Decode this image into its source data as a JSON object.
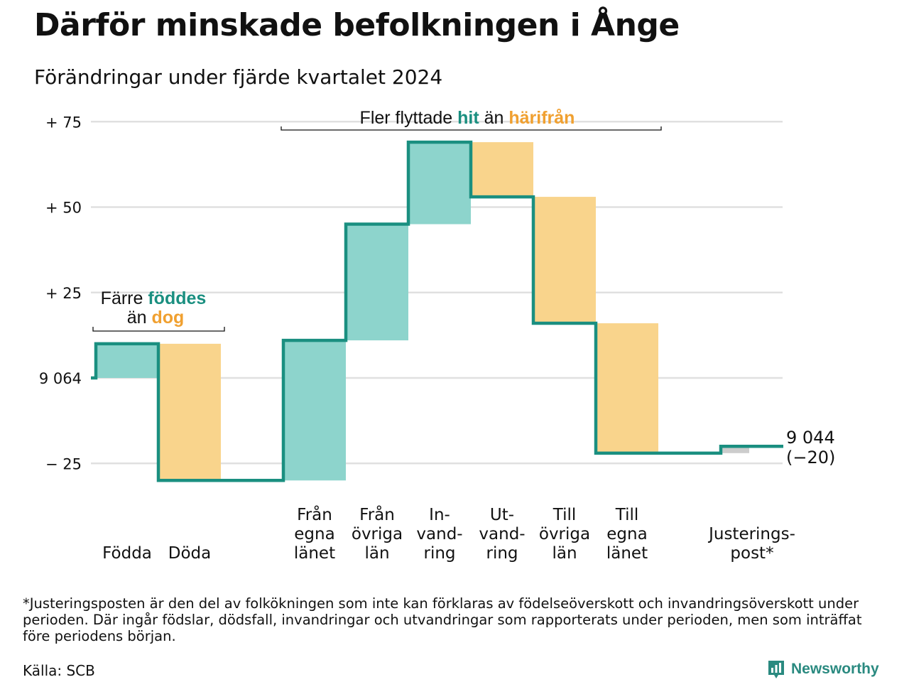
{
  "header": {
    "title": "Därför minskade befolkningen i Ånge",
    "subtitle": "Förändringar under fjärde kvartalet 2024"
  },
  "chart_data": {
    "type": "bar",
    "subtype": "waterfall",
    "start_value": 9064,
    "end_label": "9 044",
    "end_change_label": "(−20)",
    "ylim": [
      -30,
      78
    ],
    "yticks": [
      {
        "value": 75,
        "label": "+ 75"
      },
      {
        "value": 50,
        "label": "+ 50"
      },
      {
        "value": 25,
        "label": "+ 25"
      },
      {
        "value": 0,
        "label": "9 064"
      },
      {
        "value": -25,
        "label": "− 25"
      }
    ],
    "categories": [
      {
        "lines": [
          "Födda"
        ],
        "value": 10,
        "kind": "in"
      },
      {
        "lines": [
          "Döda"
        ],
        "value": -40,
        "kind": "out"
      },
      {
        "lines": [
          ""
        ],
        "value": 0,
        "kind": "gap"
      },
      {
        "lines": [
          "Från",
          "egna",
          "länet"
        ],
        "value": 41,
        "kind": "in"
      },
      {
        "lines": [
          "Från",
          "övriga",
          "län"
        ],
        "value": 34,
        "kind": "in"
      },
      {
        "lines": [
          "In-",
          "vand-",
          "ring"
        ],
        "value": 24,
        "kind": "in"
      },
      {
        "lines": [
          "Ut-",
          "vand-",
          "ring"
        ],
        "value": -16,
        "kind": "out"
      },
      {
        "lines": [
          "Till",
          "övriga",
          "län"
        ],
        "value": -37,
        "kind": "out"
      },
      {
        "lines": [
          "Till",
          "egna",
          "länet"
        ],
        "value": -38,
        "kind": "out"
      },
      {
        "lines": [
          ""
        ],
        "value": 0,
        "kind": "gap"
      },
      {
        "lines": [
          "Justerings-",
          "post*"
        ],
        "value": 2,
        "kind": "adjust"
      }
    ],
    "annotations": [
      {
        "id": "births",
        "line1": "Färre ",
        "hl1": "föddes",
        "line2": "än ",
        "hl2": "dog"
      },
      {
        "id": "migration",
        "text": "Fler flyttade ",
        "hl1": "hit",
        "mid": " än ",
        "hl2": "härifrån"
      }
    ],
    "colors": {
      "in_fill": "#8dd4cc",
      "out_fill": "#f9d48c",
      "adjust_fill": "#cccccc",
      "step_line": "#1a8f80",
      "hit_text": "#1a8f80",
      "harifran_text": "#f0a030",
      "grid": "#e0e0e0"
    }
  },
  "footnote": "*Justeringsposten är den del av folkökningen som inte kan förklaras av födelseöverskott och invandringsöverskott under perioden. Där ingår födslar, dödsfall, invandringar och utvandringar som rapporterats under perioden, men som inträffat före periodens början.",
  "source": "Källa: SCB",
  "logo": {
    "text": "Newsworthy",
    "icon": "newsworthy-logo-icon"
  }
}
